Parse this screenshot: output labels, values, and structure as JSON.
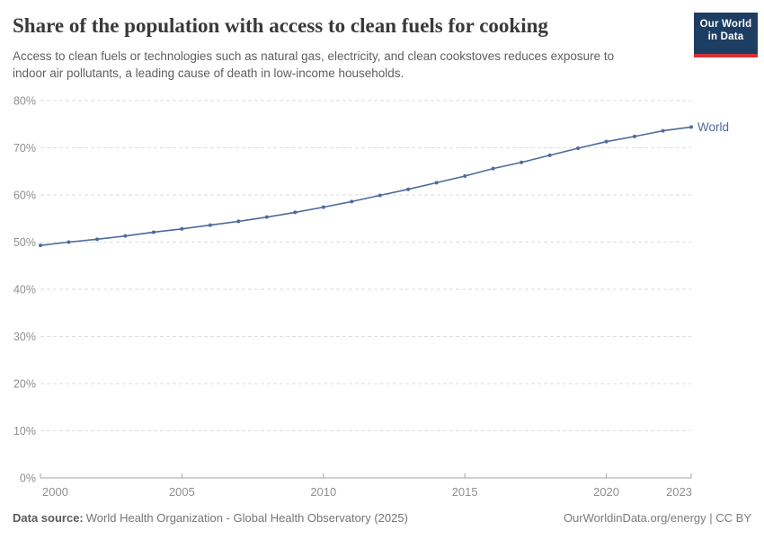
{
  "header": {
    "title": "Share of the population with access to clean fuels for cooking",
    "subtitle_lines": [
      "Access to clean fuels or technologies such as natural gas, electricity, and clean cookstoves reduces exposure to",
      "indoor air pollutants, a leading cause of death in low-income households."
    ],
    "logo": {
      "line1": "Our World",
      "line2": "in Data"
    }
  },
  "chart_data": {
    "type": "line",
    "title": "Share of the population with access to clean fuels for cooking",
    "x": [
      2000,
      2001,
      2002,
      2003,
      2004,
      2005,
      2006,
      2007,
      2008,
      2009,
      2010,
      2011,
      2012,
      2013,
      2014,
      2015,
      2016,
      2017,
      2018,
      2019,
      2020,
      2021,
      2022,
      2023
    ],
    "series": [
      {
        "name": "World",
        "color": "#4c6a9c",
        "values": [
          49.3,
          50.0,
          50.6,
          51.3,
          52.1,
          52.8,
          53.6,
          54.4,
          55.3,
          56.3,
          57.4,
          58.6,
          59.9,
          61.2,
          62.6,
          64.0,
          65.6,
          66.9,
          68.4,
          69.9,
          71.3,
          72.4,
          73.6,
          74.4
        ]
      }
    ],
    "xlabel": "",
    "ylabel": "",
    "ylim": [
      0,
      80
    ],
    "xlim": [
      2000,
      2023
    ],
    "y_ticks": [
      0,
      10,
      20,
      30,
      40,
      50,
      60,
      70,
      80
    ],
    "y_tick_suffix": "%",
    "x_ticks": [
      2000,
      2005,
      2010,
      2015,
      2020,
      2023
    ],
    "grid": "horizontal-dashed",
    "legend_position": "end-of-line"
  },
  "footer": {
    "source_label": "Data source:",
    "source_value": "World Health Organization - Global Health Observatory (2025)",
    "attribution": "OurWorldinData.org/energy | CC BY"
  },
  "colors": {
    "line": "#4c6a9c",
    "logo_bg": "#1d3d63",
    "logo_accent": "#d0333b",
    "grid": "#dddddd",
    "axis": "#a5a5a5",
    "tick_label": "#8f8f8f"
  }
}
